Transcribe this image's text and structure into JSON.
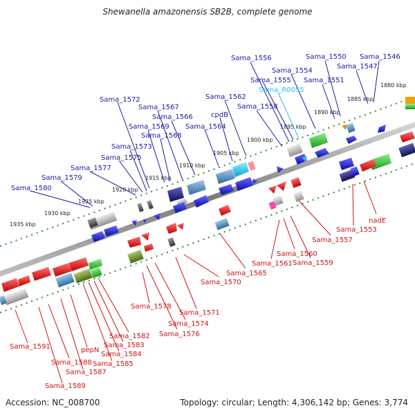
{
  "title": "Shewanella amazonensis SB2B, complete genome",
  "footer": {
    "accession": "Accession: NC_008700",
    "summary": "Topology: circular; Length: 4,306,142 bp; Genes: 3,774"
  },
  "colors": {
    "forward_label": "#1a1aa0",
    "reverse_label": "#d01010",
    "rna_label": "#33bbee",
    "forward_gene": "#1414ee",
    "reverse_gene": "#ee1414",
    "axis": "#888888",
    "tick": "#2a8a2a"
  },
  "kbp_marks": [
    "1880 kbp",
    "1885 kbp",
    "1890 kbp",
    "1895 kbp",
    "1900 kbp",
    "1905 kbp",
    "1910 kbp",
    "1915 kbp",
    "1920 kbp",
    "1925 kbp",
    "1930 kbp",
    "1935 kbp"
  ],
  "top_labels": [
    "Sama_1546",
    "Sama_1547",
    "Sama_1550",
    "Sama_1551",
    "Sama_1554",
    "Sama_1555",
    "Sama_1556",
    "Sama_R0055",
    "Sama_1558",
    "Sama_1562",
    "cpdB",
    "Sama_1564",
    "Sama_1566",
    "Sama_1567",
    "Sama_1568",
    "Sama_1569",
    "Sama_1572",
    "Sama_1573",
    "Sama_1575",
    "Sama_1577",
    "Sama_1579",
    "Sama_1580"
  ],
  "bottom_labels": [
    "nadE",
    "Sama_1553",
    "Sama_1557",
    "Sama_1559",
    "Sama_1560",
    "Sama_1561",
    "Sama_1565",
    "Sama_1570",
    "Sama_1571",
    "Sama_1574",
    "Sama_1576",
    "Sama_1578",
    "Sama_1582",
    "Sama_1583",
    "Sama_1584",
    "Sama_1585",
    "pepN",
    "Sama_1587",
    "Sama_1588",
    "Sama_1589",
    "Sama_1591"
  ]
}
